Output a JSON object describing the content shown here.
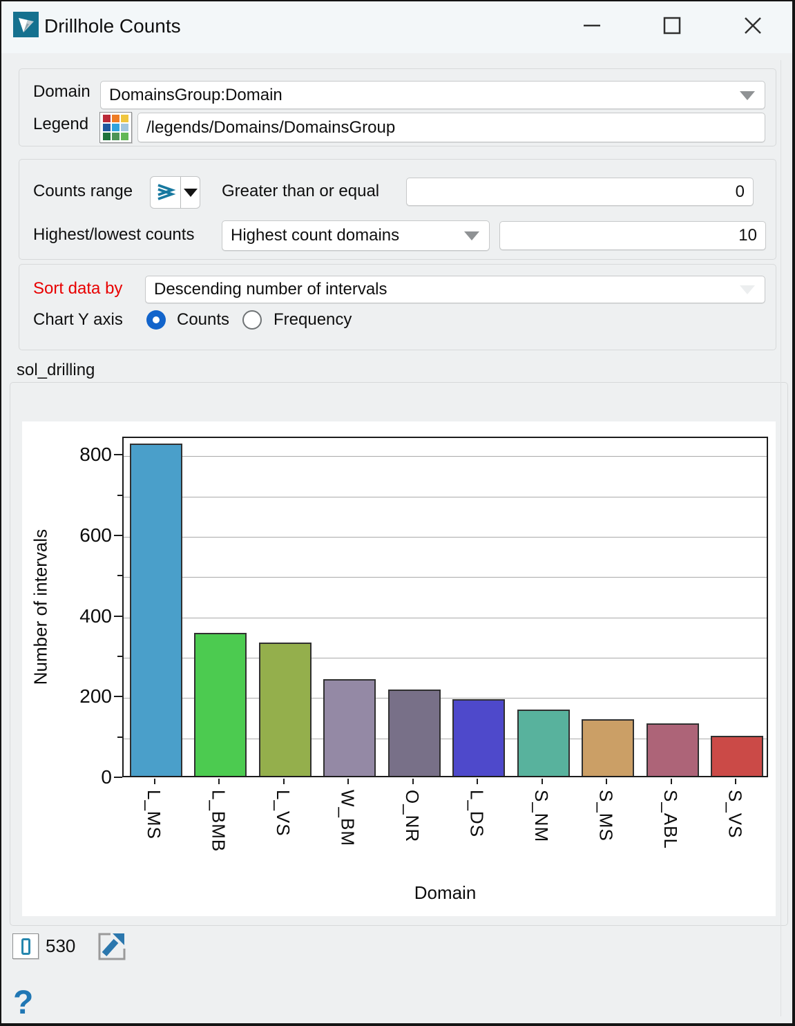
{
  "window": {
    "title": "Drillhole Counts"
  },
  "icons": {
    "app": "vulcan-logo",
    "minimize": "minimize",
    "maximize": "maximize",
    "close": "close",
    "legend": "color-grid",
    "counts_range_operator": "greater-than-or-equal",
    "detach": "open-in-new-window",
    "help": "?"
  },
  "form": {
    "domain_label": "Domain",
    "domain_value": "DomainsGroup:Domain",
    "legend_label": "Legend",
    "legend_path": "/legends/Domains/DomainsGroup",
    "counts_range_label": "Counts range",
    "greater_label": "Greater than or equal",
    "greater_value": "0",
    "highest_lowest_label": "Highest/lowest counts",
    "highest_lowest_value": "Highest count domains",
    "count_limit_value": "10",
    "sort_label": "Sort data by",
    "sort_value": "Descending number of intervals",
    "chart_y_axis_label": "Chart Y axis",
    "radio_counts_label": "Counts",
    "radio_frequency_label": "Frequency",
    "chart_y_axis_selected": "Counts"
  },
  "legend_icon_colors": [
    "#bb2a38",
    "#ee7c25",
    "#f0c63e",
    "#20589e",
    "#2fa3dd",
    "#a3c6dd",
    "#1f733d",
    "#4d9457",
    "#62b855"
  ],
  "chart_group": {
    "title": "sol_drilling"
  },
  "chart_data": {
    "type": "bar",
    "title": "sol_drilling",
    "categories": [
      "L_MS",
      "L_BMB",
      "L_VS",
      "W_BM",
      "O_NR",
      "L_DS",
      "S_NM",
      "S_MS",
      "S_ABL",
      "S_VS"
    ],
    "values": [
      825,
      355,
      330,
      240,
      215,
      190,
      165,
      140,
      130,
      100
    ],
    "bar_colors": [
      "#4a9fca",
      "#4ccb50",
      "#94af4c",
      "#9489a5",
      "#787088",
      "#4e49cb",
      "#58b29d",
      "#cb9f66",
      "#ad6478",
      "#cb4a47"
    ],
    "xlabel": "Domain",
    "ylabel": "Number of intervals",
    "ylim": [
      0,
      845
    ],
    "yticks": [
      0,
      200,
      400,
      600,
      800
    ],
    "grid": "horizontal every 100",
    "legend_position": "none"
  },
  "statusbar": {
    "count": "530"
  }
}
